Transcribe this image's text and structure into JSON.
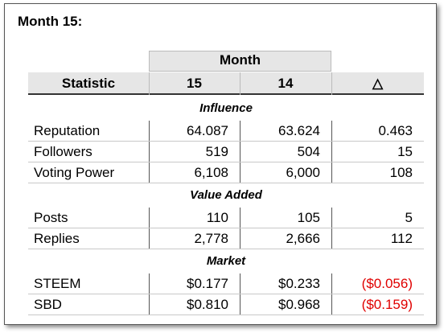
{
  "header": {
    "title": "Month 15:"
  },
  "table": {
    "group_header": "Month",
    "columns": [
      "Statistic",
      "15",
      "14",
      "△"
    ],
    "sections": [
      {
        "name": "Influence",
        "rows": [
          [
            "Reputation",
            "64.087",
            "63.624",
            "0.463"
          ],
          [
            "Followers",
            "519",
            "504",
            "15"
          ],
          [
            "Voting Power",
            "6,108",
            "6,000",
            "108"
          ]
        ]
      },
      {
        "name": "Value Added",
        "rows": [
          [
            "Posts",
            "110",
            "105",
            "5"
          ],
          [
            "Replies",
            "2,778",
            "2,666",
            "112"
          ]
        ]
      },
      {
        "name": "Market",
        "rows": [
          [
            "STEEM",
            "$0.177",
            "$0.233",
            "($0.056)"
          ],
          [
            "SBD",
            "$0.810",
            "$0.968",
            "($0.159)"
          ]
        ]
      }
    ]
  }
}
